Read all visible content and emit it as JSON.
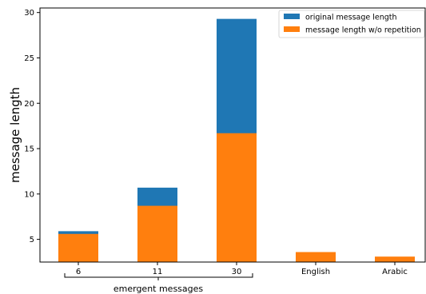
{
  "chart_data": {
    "type": "bar",
    "stacked_overlay": true,
    "categories": [
      "6",
      "11",
      "30",
      "English",
      "Arabic"
    ],
    "series": [
      {
        "name": "original message length",
        "color": "#1f77b4",
        "values": [
          5.9,
          10.7,
          29.3,
          null,
          null
        ]
      },
      {
        "name": "message length w/o repetition",
        "color": "#ff7f0e",
        "values": [
          5.6,
          8.7,
          16.7,
          3.6,
          3.1
        ]
      }
    ],
    "ylabel": "message length",
    "ylim": [
      2.5,
      30.5
    ],
    "yticks": [
      5,
      10,
      15,
      20,
      25,
      30
    ],
    "group_label": "emergent messages",
    "legend_position": "top-right",
    "grid": false
  }
}
